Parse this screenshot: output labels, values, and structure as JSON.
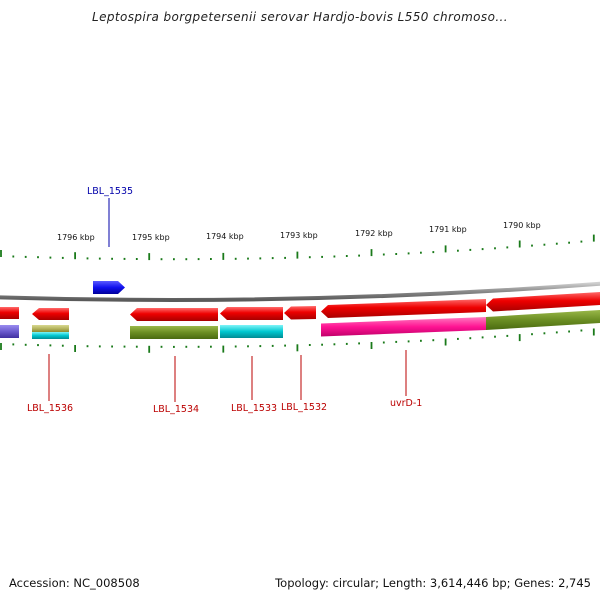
{
  "title": "Leptospira borgpetersenii serovar Hardjo-bovis L550 chromoso...",
  "footer": {
    "accession": "Accession: NC_008508",
    "topology": "Topology: circular; Length: 3,614,446 bp; Genes: 2,745"
  },
  "ticks": [
    "1796 kbp",
    "1795 kbp",
    "1794 kbp",
    "1793 kbp",
    "1792 kbp",
    "1791 kbp",
    "1790 kbp"
  ],
  "gene_labels": {
    "top": [
      {
        "label": "LBL_1535"
      }
    ],
    "bottom": [
      {
        "label": "LBL_1536"
      },
      {
        "label": "LBL_1534"
      },
      {
        "label": "LBL_1533"
      },
      {
        "label": "LBL_1532"
      },
      {
        "label": "uvrD-1"
      }
    ]
  },
  "colors": {
    "forward_gene": "#1010ee",
    "reverse_gene": "#ee0000",
    "backbone": "#8a8a8a",
    "tick": "#1a7a1a",
    "top_label": "#0000aa",
    "bottom_label": "#bb0000",
    "cog_olive": "#6b8e23",
    "cog_cyan": "#00c8d0",
    "cog_magenta": "#ff1493",
    "cog_purple": "#6a5acd",
    "cog_khaki": "#b5b560"
  }
}
